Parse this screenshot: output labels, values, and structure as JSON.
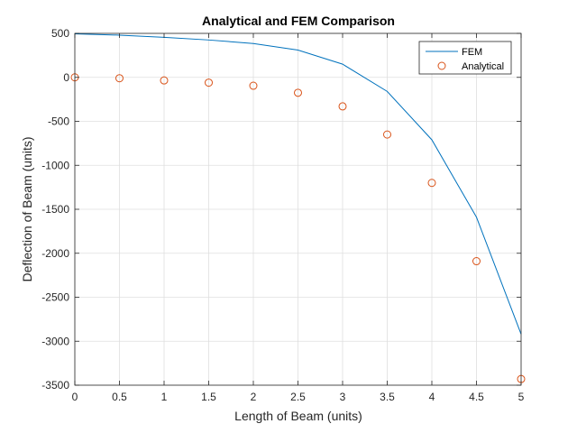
{
  "chart_data": {
    "type": "line",
    "title": "Analytical and FEM Comparison",
    "xlabel": "Length of Beam (units)",
    "ylabel": "Deflection of Beam (units)",
    "xlim": [
      0,
      5
    ],
    "ylim": [
      -3500,
      500
    ],
    "xticks": [
      0,
      0.5,
      1,
      1.5,
      2,
      2.5,
      3,
      3.5,
      4,
      4.5,
      5
    ],
    "xtick_labels": [
      "0",
      "0.5",
      "1",
      "1.5",
      "2",
      "2.5",
      "3",
      "3.5",
      "4",
      "4.5",
      "5"
    ],
    "yticks": [
      500,
      0,
      -500,
      -1000,
      -1500,
      -2000,
      -2500,
      -3000,
      -3500
    ],
    "ytick_labels": [
      "500",
      "0",
      "-500",
      "-1000",
      "-1500",
      "-2000",
      "-2500",
      "-3000",
      "-3500"
    ],
    "grid": true,
    "legend_position": "top-right",
    "series": [
      {
        "name": "FEM",
        "style": "line",
        "color": "#0072BD",
        "x": [
          0,
          0.5,
          1,
          1.5,
          2,
          2.5,
          3,
          3.5,
          4,
          4.5,
          5
        ],
        "y": [
          495,
          480,
          455,
          425,
          385,
          310,
          150,
          -160,
          -710,
          -1590,
          -2920
        ]
      },
      {
        "name": "Analytical",
        "style": "marker-circle",
        "color": "#D95319",
        "x": [
          0,
          0.5,
          1,
          1.5,
          2,
          2.5,
          3,
          3.5,
          4,
          4.5,
          5
        ],
        "y": [
          0,
          -10,
          -35,
          -60,
          -95,
          -175,
          -330,
          -650,
          -1200,
          -2090,
          -3430
        ]
      }
    ]
  }
}
